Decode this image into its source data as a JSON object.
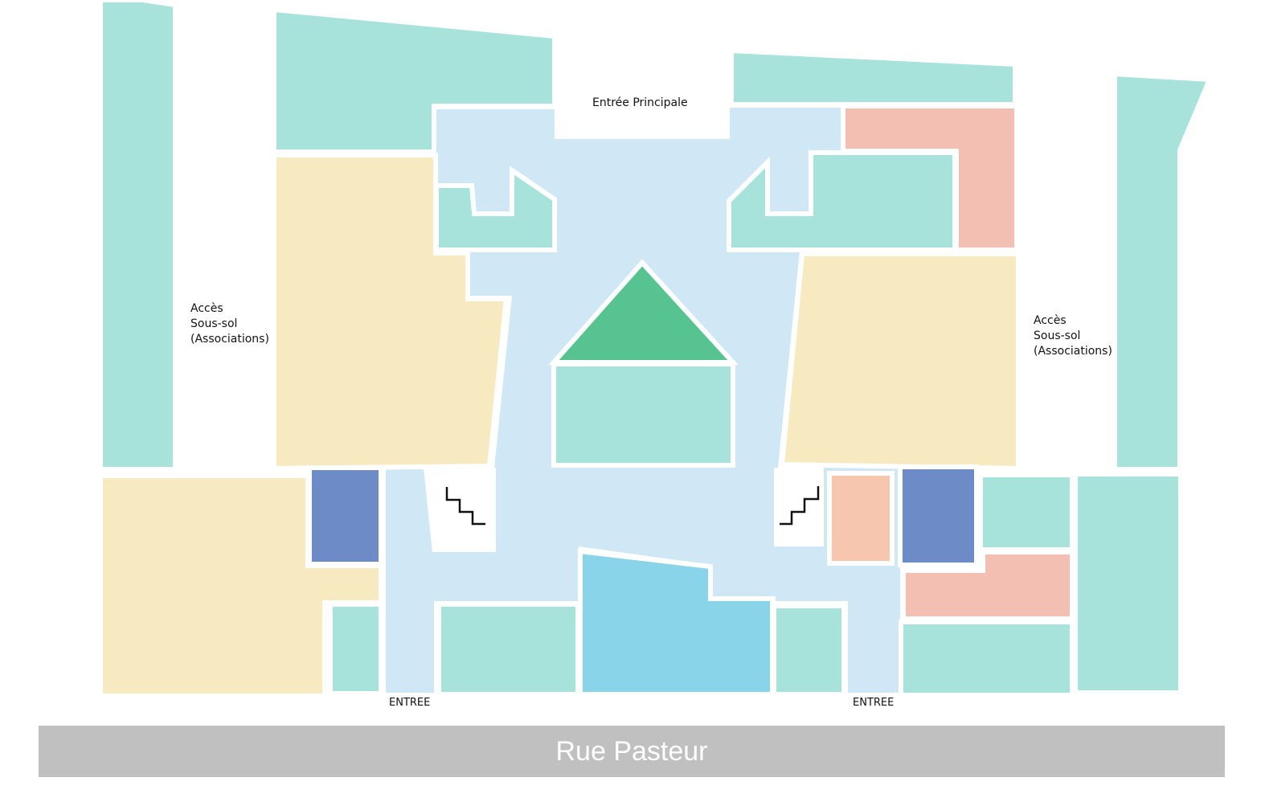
{
  "labels": {
    "main_entrance": "Entrée Principale",
    "left_access": [
      "Accès",
      "Sous-sol",
      "(Associations)"
    ],
    "right_access": [
      "Accès",
      "Sous-sol",
      "(Associations)"
    ],
    "entrance_left": "ENTREE",
    "entrance_right": "ENTREE"
  },
  "street": {
    "name": "Rue Pasteur",
    "color": "#c0c0c0"
  },
  "colors": {
    "corridor": "#d0e8f6",
    "shop_teal": "#a7e3db",
    "yellow": "#f7eac1",
    "salmon": "#f3bfb3",
    "peach": "#f7c6ae",
    "navy": "#6d8bc6",
    "blue": "#8ad4ea",
    "green": "#56c390",
    "stairs_area": "#ffffff"
  },
  "icons": [
    "stairs-icon",
    "stairs-icon"
  ]
}
